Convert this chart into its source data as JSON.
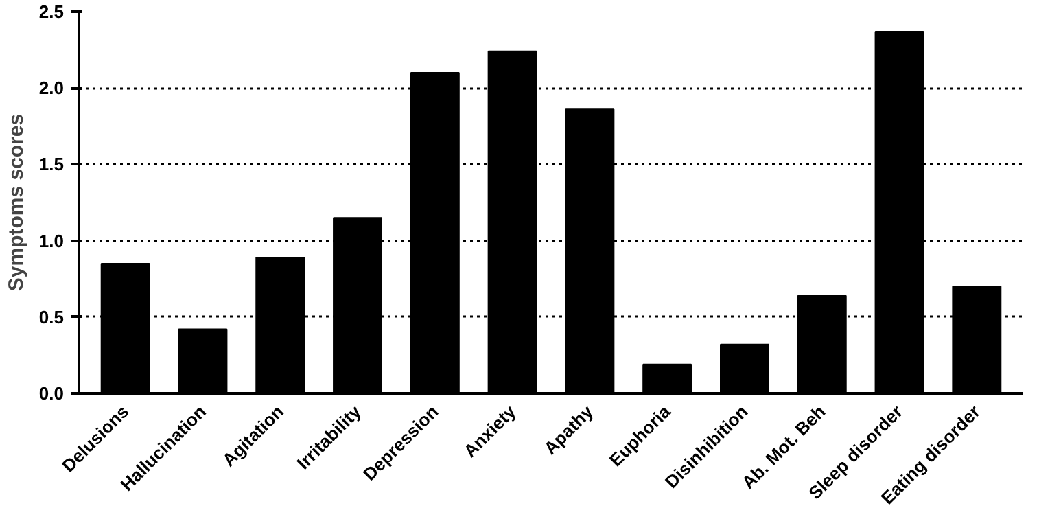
{
  "chart_data": {
    "type": "bar",
    "ylabel": "Symptoms scores",
    "categories": [
      "Delusions",
      "Hallucination",
      "Agitation",
      "Irritability",
      "Depression",
      "Anxiety",
      "Apathy",
      "Euphoria",
      "Disinhibition",
      "Ab. Mot. Beh",
      "Sleep disorder",
      "Eating disorder"
    ],
    "values": [
      0.85,
      0.42,
      0.89,
      1.15,
      2.1,
      2.24,
      1.86,
      0.19,
      0.32,
      0.64,
      2.37,
      0.7
    ],
    "color": "#000000",
    "ylim": [
      0,
      2.5
    ],
    "yticks": [
      {
        "value": 0,
        "label": "0.0"
      },
      {
        "value": 0.5,
        "label": "0.5"
      },
      {
        "value": 1,
        "label": "1.0"
      },
      {
        "value": 1.5,
        "label": "1.5"
      },
      {
        "value": 2,
        "label": "2.0"
      },
      {
        "value": 2.5,
        "label": "2.5"
      }
    ],
    "grid": "y"
  }
}
